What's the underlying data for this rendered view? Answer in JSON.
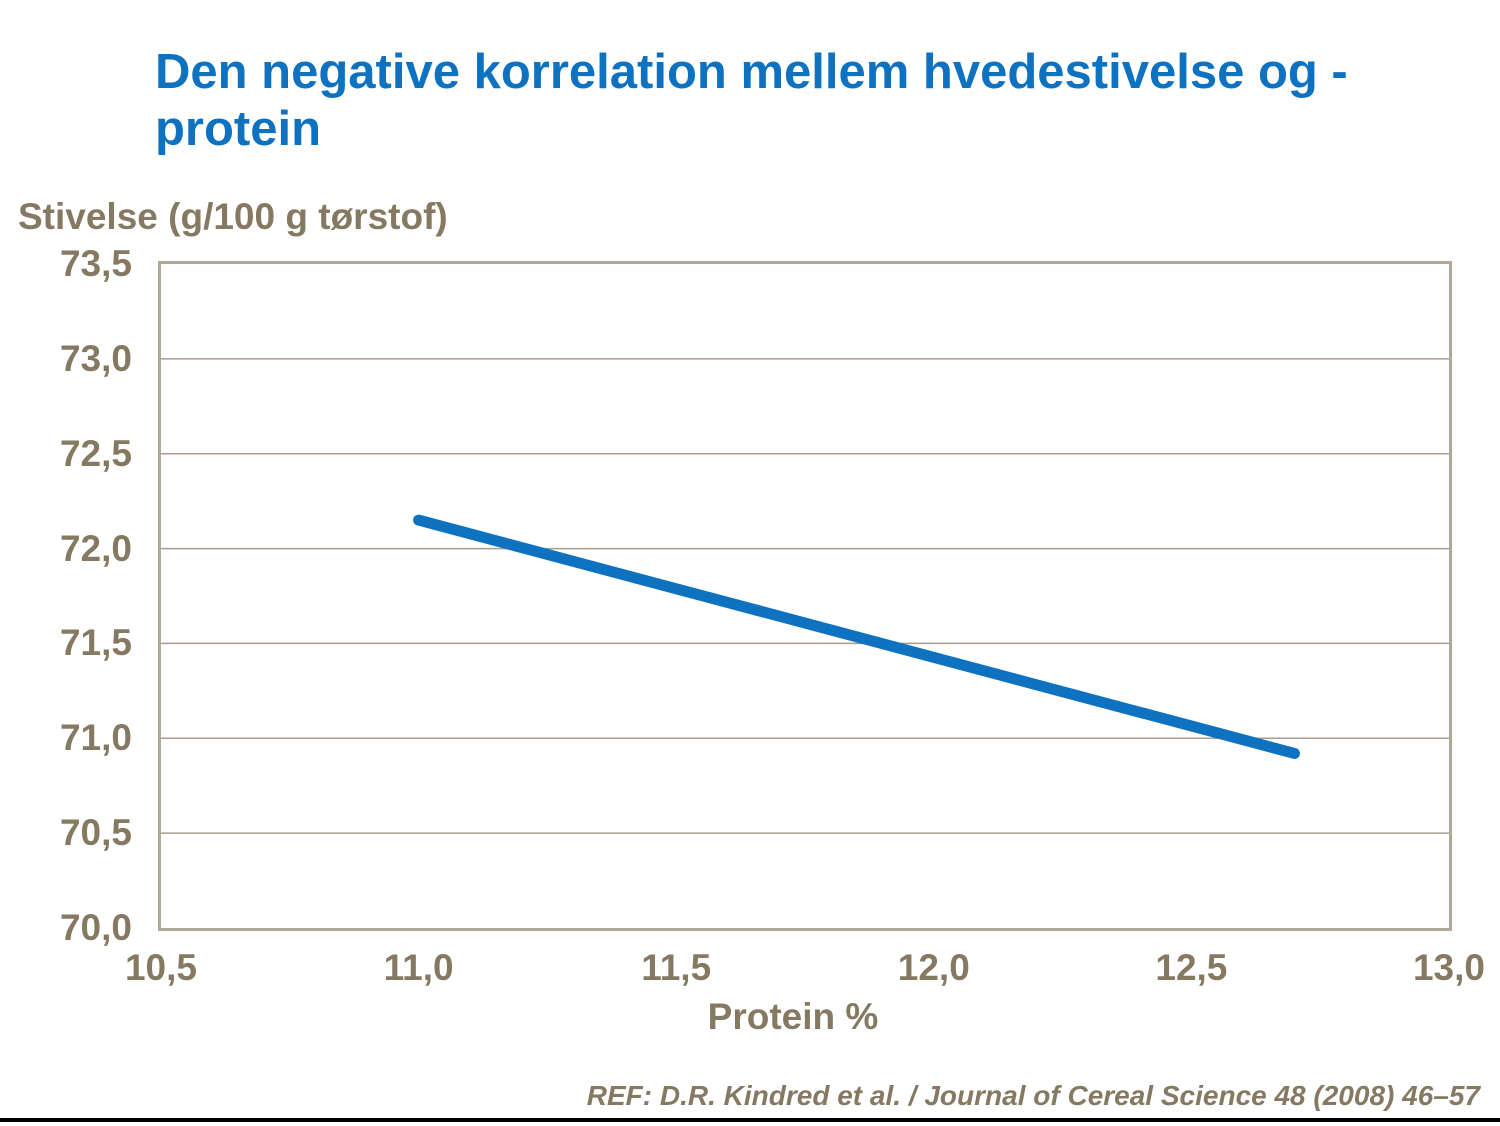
{
  "page": {
    "title_line1": "Den negative korrelation mellem hvedestivelse og -",
    "title_line2": "protein",
    "reference": "REF: D.R. Kindred et al. / Journal of Cereal Science 48 (2008) 46–57"
  },
  "colors": {
    "title_blue": "#0e72c0",
    "axis_text_brown": "#867962",
    "plot_border_tan": "#b2a89a",
    "gridline_tan": "#a79d8f",
    "line_blue": "#0e72c0",
    "bottom_bar": "#000000"
  },
  "chart_data": {
    "type": "line",
    "title": "Den negative korrelation mellem hvedestivelse og - protein",
    "xlabel": "Protein %",
    "ylabel": "Stivelse (g/100 g tørstof)",
    "xlim": [
      10.5,
      13.0
    ],
    "ylim": [
      70.0,
      73.5
    ],
    "x_ticks": [
      {
        "value": 10.5,
        "label": "10,5"
      },
      {
        "value": 11.0,
        "label": "11,0"
      },
      {
        "value": 11.5,
        "label": "11,5"
      },
      {
        "value": 12.0,
        "label": "12,0"
      },
      {
        "value": 12.5,
        "label": "12,5"
      },
      {
        "value": 13.0,
        "label": "13,0"
      }
    ],
    "y_ticks": [
      {
        "value": 73.5,
        "label": "73,5"
      },
      {
        "value": 73.0,
        "label": "73,0"
      },
      {
        "value": 72.5,
        "label": "72,5"
      },
      {
        "value": 72.0,
        "label": "72,0"
      },
      {
        "value": 71.5,
        "label": "71,5"
      },
      {
        "value": 71.0,
        "label": "71,0"
      },
      {
        "value": 70.5,
        "label": "70,5"
      },
      {
        "value": 70.0,
        "label": "70,0"
      }
    ],
    "grid": "horizontal-only",
    "legend": "none",
    "series": [
      {
        "name": "stivelse-protein-korrelation",
        "x": [
          11.0,
          12.7
        ],
        "y": [
          72.15,
          70.92
        ],
        "color": "#0e72c0",
        "stroke_width": 11
      }
    ]
  }
}
